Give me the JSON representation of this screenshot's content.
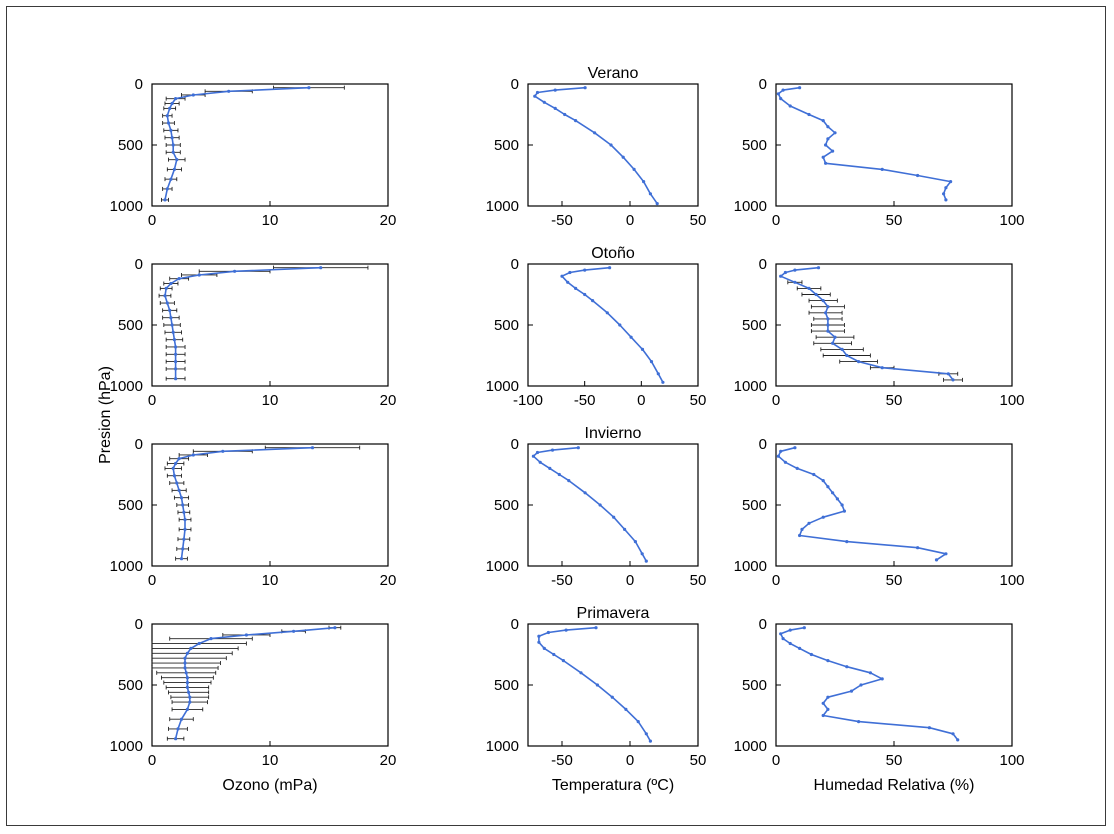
{
  "chart_data": {
    "type": "line",
    "layout": "4x3 grid of vertical profiles (y axis reversed)",
    "variables": [
      {
        "xlabel": "Ozono (mPa)",
        "xlim": [
          0,
          20
        ],
        "xticks": [
          "0",
          "10",
          "20"
        ]
      },
      {
        "xlabel": "Temperatura (ºC)",
        "xlim": [
          -75,
          50
        ],
        "xticks": [
          "-50",
          "0",
          "50"
        ]
      },
      {
        "xlabel": "Humedad Relativa (%)",
        "xlim": [
          0,
          100
        ],
        "xticks": [
          "0",
          "50",
          "100"
        ]
      }
    ],
    "ylabel": "Presion (hPa)",
    "ylim": [
      1000,
      0
    ],
    "yticks": [
      "0",
      "500",
      "1000"
    ],
    "grid": false,
    "line_color": "#3f6fd6",
    "seasons": [
      {
        "title": "Verano",
        "ozone": {
          "p": [
            30,
            60,
            90,
            120,
            160,
            200,
            260,
            320,
            380,
            440,
            500,
            560,
            620,
            700,
            780,
            860,
            950
          ],
          "x": [
            13.3,
            6.5,
            3.5,
            2.0,
            1.7,
            1.5,
            1.3,
            1.4,
            1.6,
            1.7,
            1.8,
            1.8,
            2.1,
            1.9,
            1.6,
            1.3,
            1.1
          ],
          "err": [
            3.0,
            2.0,
            1.0,
            0.8,
            0.6,
            0.5,
            0.4,
            0.5,
            0.6,
            0.6,
            0.6,
            0.6,
            0.7,
            0.6,
            0.5,
            0.4,
            0.3
          ]
        },
        "temp": {
          "p": [
            30,
            50,
            70,
            100,
            150,
            200,
            250,
            300,
            400,
            500,
            600,
            700,
            800,
            900,
            980
          ],
          "x": [
            -33,
            -55,
            -68,
            -70,
            -63,
            -55,
            -48,
            -40,
            -26,
            -14,
            -5,
            3,
            10,
            15,
            20
          ]
        },
        "rh": {
          "p": [
            30,
            50,
            80,
            120,
            180,
            250,
            300,
            350,
            400,
            450,
            500,
            550,
            600,
            650,
            700,
            750,
            800,
            850,
            900,
            950
          ],
          "x": [
            10,
            3,
            1,
            2,
            6,
            14,
            20,
            22,
            25,
            22,
            21,
            24,
            20,
            21,
            45,
            60,
            74,
            72,
            71,
            72
          ]
        }
      },
      {
        "title": "Otoño",
        "xlim_temp": [
          -100,
          50
        ],
        "xticks_temp": [
          "-100",
          "-50",
          "0",
          "50"
        ],
        "ozone": {
          "p": [
            30,
            60,
            90,
            120,
            160,
            200,
            260,
            320,
            380,
            440,
            500,
            560,
            620,
            680,
            740,
            800,
            860,
            940
          ],
          "x": [
            14.3,
            7.0,
            4.0,
            2.3,
            1.6,
            1.2,
            1.1,
            1.3,
            1.5,
            1.6,
            1.7,
            1.8,
            1.9,
            2.0,
            2.0,
            2.0,
            2.0,
            2.0
          ],
          "err": [
            4.0,
            3.0,
            1.5,
            0.8,
            0.6,
            0.5,
            0.5,
            0.6,
            0.6,
            0.7,
            0.7,
            0.7,
            0.7,
            0.8,
            0.8,
            0.8,
            0.8,
            0.8
          ]
        },
        "temp": {
          "p": [
            30,
            50,
            70,
            100,
            150,
            200,
            250,
            300,
            400,
            500,
            600,
            700,
            800,
            900,
            970
          ],
          "x": [
            -28,
            -50,
            -63,
            -70,
            -65,
            -58,
            -50,
            -43,
            -30,
            -19,
            -9,
            1,
            9,
            15,
            19
          ]
        },
        "rh": {
          "p": [
            30,
            50,
            70,
            100,
            150,
            200,
            250,
            300,
            350,
            400,
            450,
            500,
            550,
            600,
            650,
            700,
            750,
            800,
            850,
            900,
            950
          ],
          "x": [
            18,
            8,
            4,
            2,
            8,
            14,
            17,
            20,
            22,
            21,
            22,
            22,
            22,
            25,
            24,
            28,
            30,
            35,
            45,
            73,
            75
          ],
          "err": [
            0,
            0,
            0,
            0,
            3,
            5,
            6,
            6,
            7,
            7,
            6,
            7,
            7,
            8,
            8,
            9,
            10,
            8,
            5,
            4,
            4
          ]
        }
      },
      {
        "title": "Invierno",
        "ozone": {
          "p": [
            30,
            60,
            90,
            120,
            160,
            200,
            260,
            320,
            380,
            440,
            500,
            560,
            620,
            700,
            780,
            860,
            940
          ],
          "x": [
            13.6,
            6.0,
            3.5,
            2.3,
            2.0,
            1.8,
            1.9,
            2.1,
            2.3,
            2.5,
            2.6,
            2.7,
            2.8,
            2.8,
            2.7,
            2.6,
            2.5
          ],
          "err": [
            4.0,
            2.5,
            1.2,
            0.8,
            0.7,
            0.7,
            0.6,
            0.6,
            0.6,
            0.6,
            0.5,
            0.5,
            0.5,
            0.5,
            0.5,
            0.5,
            0.5
          ]
        },
        "temp": {
          "p": [
            30,
            50,
            70,
            100,
            150,
            200,
            250,
            300,
            400,
            500,
            600,
            700,
            800,
            900,
            960
          ],
          "x": [
            -38,
            -57,
            -68,
            -71,
            -66,
            -59,
            -52,
            -45,
            -33,
            -22,
            -12,
            -4,
            4,
            9,
            12
          ]
        },
        "rh": {
          "p": [
            30,
            60,
            100,
            150,
            200,
            250,
            300,
            350,
            400,
            450,
            500,
            550,
            600,
            650,
            700,
            750,
            800,
            850,
            900,
            950
          ],
          "x": [
            8,
            2,
            1,
            4,
            9,
            16,
            20,
            22,
            24,
            26,
            28,
            29,
            20,
            14,
            11,
            10,
            30,
            60,
            72,
            68
          ]
        }
      },
      {
        "title": "Primavera",
        "ozone": {
          "p": [
            30,
            60,
            90,
            120,
            160,
            200,
            240,
            280,
            320,
            360,
            400,
            440,
            480,
            520,
            560,
            600,
            640,
            700,
            780,
            860,
            940
          ],
          "x": [
            15.5,
            12.0,
            8.0,
            5.0,
            4.0,
            3.3,
            3.0,
            2.8,
            2.8,
            2.8,
            2.9,
            3.0,
            3.0,
            3.0,
            3.1,
            3.2,
            3.2,
            3.0,
            2.5,
            2.2,
            2.0
          ],
          "err": [
            0.5,
            1.0,
            2.0,
            3.5,
            4.0,
            4.0,
            3.8,
            3.5,
            3.0,
            2.8,
            2.5,
            2.2,
            2.0,
            1.8,
            1.7,
            1.6,
            1.5,
            1.3,
            1.0,
            0.8,
            0.7
          ]
        },
        "temp": {
          "p": [
            30,
            50,
            70,
            100,
            150,
            200,
            250,
            300,
            400,
            500,
            600,
            700,
            800,
            900,
            960
          ],
          "x": [
            -25,
            -47,
            -60,
            -67,
            -67,
            -63,
            -56,
            -49,
            -36,
            -24,
            -13,
            -3,
            6,
            12,
            15
          ]
        },
        "rh": {
          "p": [
            30,
            50,
            80,
            120,
            160,
            200,
            250,
            300,
            350,
            400,
            450,
            500,
            550,
            600,
            650,
            700,
            750,
            800,
            850,
            900,
            950
          ],
          "x": [
            12,
            6,
            2,
            3,
            6,
            10,
            15,
            22,
            30,
            40,
            45,
            36,
            32,
            22,
            20,
            22,
            20,
            35,
            65,
            75,
            77
          ]
        }
      }
    ]
  }
}
